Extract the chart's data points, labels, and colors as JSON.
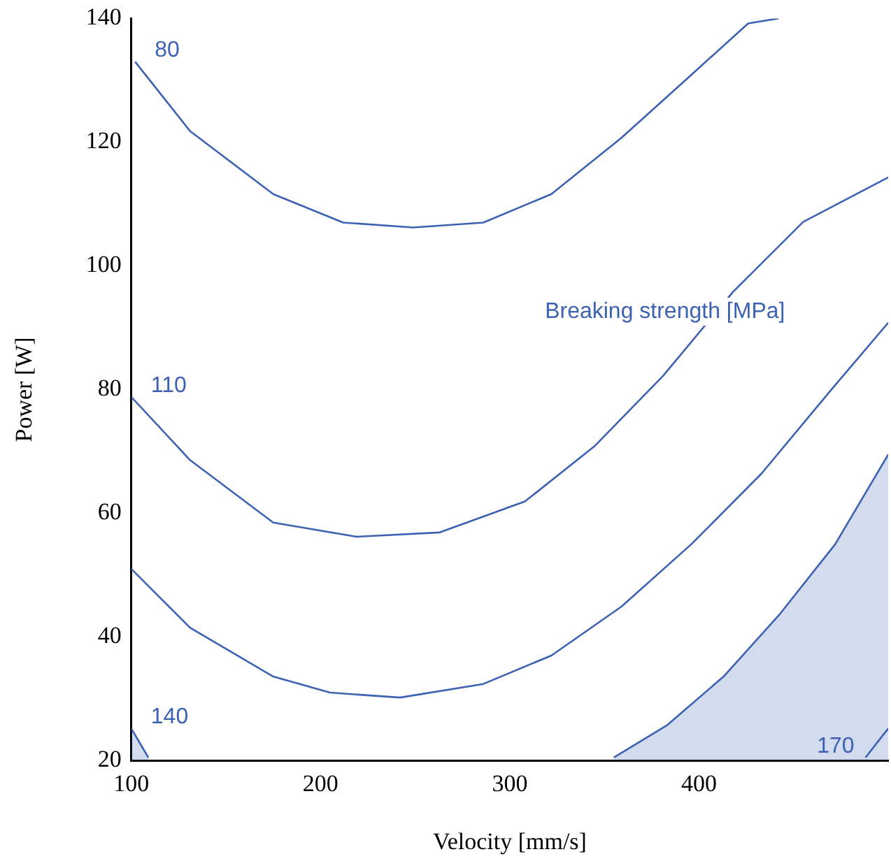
{
  "chart_data": {
    "type": "line",
    "xlabel": "Velocity [mm/s]",
    "ylabel": "Power [W]",
    "xlim": [
      100,
      500
    ],
    "xticks": [
      100,
      200,
      300,
      400
    ],
    "ylim": [
      20,
      140
    ],
    "yticks": [
      20,
      40,
      60,
      80,
      100,
      120,
      140
    ],
    "grid": false,
    "legend": false,
    "marker": "none",
    "line_style": "solid",
    "series": [
      {
        "type": "area",
        "color": "#3d62b3",
        "x": [
          355,
          383,
          413,
          443,
          472,
          500
        ],
        "values": [
          20.5,
          25.7,
          33.6,
          43.8,
          55,
          69.5
        ]
      },
      {
        "type": "area",
        "name": "140",
        "color": "#3d62b3",
        "x": [
          100,
          109
        ],
        "values": [
          25.2,
          20.5
        ]
      },
      {
        "name": "80",
        "color": "#3d62b3",
        "x": [
          102,
          131,
          175,
          212,
          249,
          286,
          322,
          359,
          396,
          426,
          442
        ],
        "values": [
          133,
          121.8,
          111.6,
          107,
          106.2,
          107,
          111.6,
          120.7,
          130.9,
          139.2,
          140
        ]
      },
      {
        "name": "110",
        "color": "#3d62b3",
        "x": [
          100,
          131,
          175,
          219,
          263,
          308,
          345,
          381,
          418,
          455,
          500
        ],
        "values": [
          78.8,
          68.6,
          58.5,
          56.2,
          56.9,
          61.9,
          70.9,
          82.2,
          95.8,
          107.1,
          114.3
        ]
      },
      {
        "color": "#3d62b3",
        "x": [
          100,
          131,
          175,
          205,
          242,
          286,
          322,
          359,
          396,
          433,
          470,
          500
        ],
        "values": [
          51,
          41.5,
          33.6,
          31,
          30.2,
          32.4,
          37,
          44.9,
          55,
          66.4,
          80,
          90.8
        ]
      },
      {
        "name": "170",
        "color": "#3d62b3",
        "x": [
          488,
          500
        ],
        "values": [
          20.5,
          25.2
        ]
      }
    ],
    "annotations": [
      "Breaking strength [MPa]"
    ]
  }
}
